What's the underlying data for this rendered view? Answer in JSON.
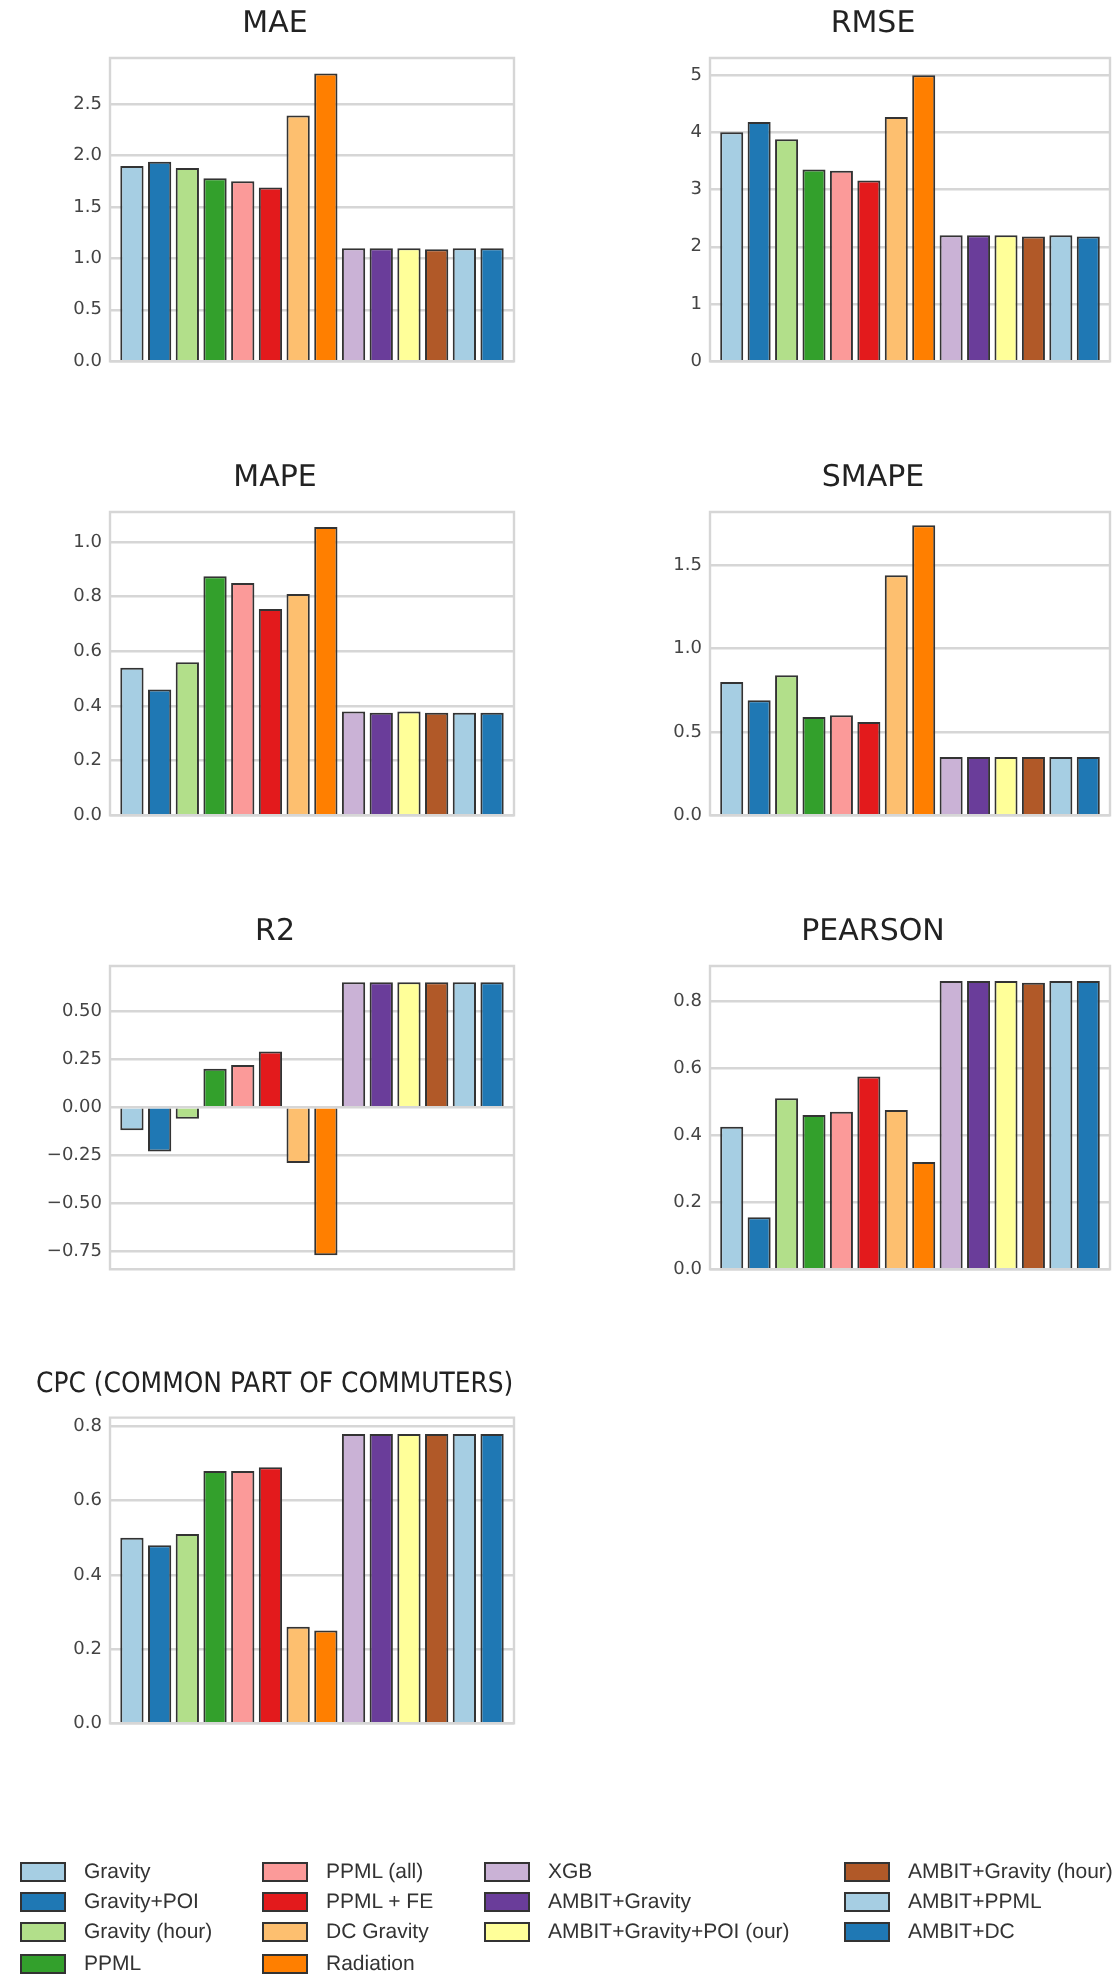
{
  "chart_data": [
    {
      "type": "bar",
      "title": "MAE",
      "categories": [
        null
      ],
      "ylim": [
        0,
        2.95
      ],
      "yticks": [
        {
          "value": 0,
          "label": "0.0"
        },
        {
          "value": 0.5,
          "label": "0.5"
        },
        {
          "value": 1,
          "label": "1.0"
        },
        {
          "value": 1.5,
          "label": "1.5"
        },
        {
          "value": 2,
          "label": "2.0"
        },
        {
          "value": 2.5,
          "label": "2.5"
        }
      ],
      "grid": "y",
      "legend": false,
      "series": [
        {
          "color": "#a6cee3",
          "values": [
            1.9
          ]
        },
        {
          "color": "#1f78b4",
          "values": [
            1.94
          ]
        },
        {
          "color": "#b2df8a",
          "values": [
            1.88
          ]
        },
        {
          "color": "#33a02c",
          "values": [
            1.78
          ]
        },
        {
          "color": "#fb9a99",
          "values": [
            1.75
          ]
        },
        {
          "color": "#e31a1c",
          "values": [
            1.69
          ]
        },
        {
          "color": "#fdbf6f",
          "values": [
            2.39
          ]
        },
        {
          "color": "#ff7f00",
          "values": [
            2.8
          ]
        },
        {
          "color": "#cab2d6",
          "values": [
            1.1
          ]
        },
        {
          "color": "#6a3d9a",
          "values": [
            1.1
          ]
        },
        {
          "color": "#ffff99",
          "values": [
            1.1
          ]
        },
        {
          "color": "#b15928",
          "values": [
            1.09
          ]
        },
        {
          "color": "#a6cee3",
          "values": [
            1.1
          ]
        },
        {
          "color": "#1f78b4",
          "values": [
            1.1
          ]
        }
      ]
    },
    {
      "type": "bar",
      "title": "RMSE",
      "categories": [
        null
      ],
      "ylim": [
        0,
        5.3
      ],
      "yticks": [
        0,
        1,
        2,
        3,
        4,
        5
      ],
      "grid": "y",
      "legend": false,
      "series": [
        {
          "color": "#a6cee3",
          "values": [
            4.0
          ]
        },
        {
          "color": "#1f78b4",
          "values": [
            4.18
          ]
        },
        {
          "color": "#b2df8a",
          "values": [
            3.88
          ]
        },
        {
          "color": "#33a02c",
          "values": [
            3.35
          ]
        },
        {
          "color": "#fb9a99",
          "values": [
            3.33
          ]
        },
        {
          "color": "#e31a1c",
          "values": [
            3.16
          ]
        },
        {
          "color": "#fdbf6f",
          "values": [
            4.27
          ]
        },
        {
          "color": "#ff7f00",
          "values": [
            5.0
          ]
        },
        {
          "color": "#cab2d6",
          "values": [
            2.2
          ]
        },
        {
          "color": "#6a3d9a",
          "values": [
            2.2
          ]
        },
        {
          "color": "#ffff99",
          "values": [
            2.2
          ]
        },
        {
          "color": "#b15928",
          "values": [
            2.18
          ]
        },
        {
          "color": "#a6cee3",
          "values": [
            2.2
          ]
        },
        {
          "color": "#1f78b4",
          "values": [
            2.18
          ]
        }
      ]
    },
    {
      "type": "bar",
      "title": "MAPE",
      "categories": [
        null
      ],
      "ylim": [
        0,
        1.11
      ],
      "yticks": [
        {
          "value": 0,
          "label": "0.0"
        },
        {
          "value": 0.2,
          "label": "0.2"
        },
        {
          "value": 0.4,
          "label": "0.4"
        },
        {
          "value": 0.6,
          "label": "0.6"
        },
        {
          "value": 0.8,
          "label": "0.8"
        },
        {
          "value": 1,
          "label": "1.0"
        }
      ],
      "grid": "y",
      "legend": false,
      "series": [
        {
          "color": "#a6cee3",
          "values": [
            0.54
          ]
        },
        {
          "color": "#1f78b4",
          "values": [
            0.46
          ]
        },
        {
          "color": "#b2df8a",
          "values": [
            0.56
          ]
        },
        {
          "color": "#33a02c",
          "values": [
            0.875
          ]
        },
        {
          "color": "#fb9a99",
          "values": [
            0.85
          ]
        },
        {
          "color": "#e31a1c",
          "values": [
            0.755
          ]
        },
        {
          "color": "#fdbf6f",
          "values": [
            0.81
          ]
        },
        {
          "color": "#ff7f00",
          "values": [
            1.055
          ]
        },
        {
          "color": "#cab2d6",
          "values": [
            0.38
          ]
        },
        {
          "color": "#6a3d9a",
          "values": [
            0.375
          ]
        },
        {
          "color": "#ffff99",
          "values": [
            0.38
          ]
        },
        {
          "color": "#b15928",
          "values": [
            0.375
          ]
        },
        {
          "color": "#a6cee3",
          "values": [
            0.375
          ]
        },
        {
          "color": "#1f78b4",
          "values": [
            0.375
          ]
        }
      ]
    },
    {
      "type": "bar",
      "title": "SMAPE",
      "categories": [
        null
      ],
      "ylim": [
        0,
        1.82
      ],
      "yticks": [
        {
          "value": 0,
          "label": "0.0"
        },
        {
          "value": 0.5,
          "label": "0.5"
        },
        {
          "value": 1,
          "label": "1.0"
        },
        {
          "value": 1.5,
          "label": "1.5"
        }
      ],
      "grid": "y",
      "legend": false,
      "series": [
        {
          "color": "#a6cee3",
          "values": [
            0.8
          ]
        },
        {
          "color": "#1f78b4",
          "values": [
            0.69
          ]
        },
        {
          "color": "#b2df8a",
          "values": [
            0.84
          ]
        },
        {
          "color": "#33a02c",
          "values": [
            0.59
          ]
        },
        {
          "color": "#fb9a99",
          "values": [
            0.6
          ]
        },
        {
          "color": "#e31a1c",
          "values": [
            0.56
          ]
        },
        {
          "color": "#fdbf6f",
          "values": [
            1.44
          ]
        },
        {
          "color": "#ff7f00",
          "values": [
            1.74
          ]
        },
        {
          "color": "#cab2d6",
          "values": [
            0.35
          ]
        },
        {
          "color": "#6a3d9a",
          "values": [
            0.35
          ]
        },
        {
          "color": "#ffff99",
          "values": [
            0.35
          ]
        },
        {
          "color": "#b15928",
          "values": [
            0.35
          ]
        },
        {
          "color": "#a6cee3",
          "values": [
            0.35
          ]
        },
        {
          "color": "#1f78b4",
          "values": [
            0.35
          ]
        }
      ]
    },
    {
      "type": "bar",
      "title": "R2",
      "categories": [
        null
      ],
      "ylim": [
        -0.843,
        0.735
      ],
      "yticks": [
        {
          "value": -0.75,
          "label": "−0.75"
        },
        {
          "value": -0.5,
          "label": "−0.50"
        },
        {
          "value": -0.25,
          "label": "−0.25"
        },
        {
          "value": 0,
          "label": "0.00"
        },
        {
          "value": 0.25,
          "label": "0.25"
        },
        {
          "value": 0.5,
          "label": "0.50"
        }
      ],
      "grid": "y",
      "legend": false,
      "series": [
        {
          "color": "#a6cee3",
          "values": [
            -0.12
          ]
        },
        {
          "color": "#1f78b4",
          "values": [
            -0.23
          ]
        },
        {
          "color": "#b2df8a",
          "values": [
            -0.06
          ]
        },
        {
          "color": "#33a02c",
          "values": [
            0.2
          ]
        },
        {
          "color": "#fb9a99",
          "values": [
            0.22
          ]
        },
        {
          "color": "#e31a1c",
          "values": [
            0.29
          ]
        },
        {
          "color": "#fdbf6f",
          "values": [
            -0.29
          ]
        },
        {
          "color": "#ff7f00",
          "values": [
            -0.77
          ]
        },
        {
          "color": "#cab2d6",
          "values": [
            0.65
          ]
        },
        {
          "color": "#6a3d9a",
          "values": [
            0.65
          ]
        },
        {
          "color": "#ffff99",
          "values": [
            0.65
          ]
        },
        {
          "color": "#b15928",
          "values": [
            0.65
          ]
        },
        {
          "color": "#a6cee3",
          "values": [
            0.65
          ]
        },
        {
          "color": "#1f78b4",
          "values": [
            0.65
          ]
        }
      ]
    },
    {
      "type": "bar",
      "title": "PEARSON",
      "categories": [
        null
      ],
      "ylim": [
        0,
        0.905
      ],
      "yticks": [
        {
          "value": 0,
          "label": "0.0"
        },
        {
          "value": 0.2,
          "label": "0.2"
        },
        {
          "value": 0.4,
          "label": "0.4"
        },
        {
          "value": 0.6,
          "label": "0.6"
        },
        {
          "value": 0.8,
          "label": "0.8"
        }
      ],
      "grid": "y",
      "legend": false,
      "series": [
        {
          "color": "#a6cee3",
          "values": [
            0.425
          ]
        },
        {
          "color": "#1f78b4",
          "values": [
            0.155
          ]
        },
        {
          "color": "#b2df8a",
          "values": [
            0.51
          ]
        },
        {
          "color": "#33a02c",
          "values": [
            0.46
          ]
        },
        {
          "color": "#fb9a99",
          "values": [
            0.47
          ]
        },
        {
          "color": "#e31a1c",
          "values": [
            0.575
          ]
        },
        {
          "color": "#fdbf6f",
          "values": [
            0.475
          ]
        },
        {
          "color": "#ff7f00",
          "values": [
            0.32
          ]
        },
        {
          "color": "#cab2d6",
          "values": [
            0.86
          ]
        },
        {
          "color": "#6a3d9a",
          "values": [
            0.86
          ]
        },
        {
          "color": "#ffff99",
          "values": [
            0.86
          ]
        },
        {
          "color": "#b15928",
          "values": [
            0.855
          ]
        },
        {
          "color": "#a6cee3",
          "values": [
            0.86
          ]
        },
        {
          "color": "#1f78b4",
          "values": [
            0.86
          ]
        }
      ]
    },
    {
      "type": "bar",
      "title": "CPC (COMMON PART OF COMMUTERS)",
      "categories": [
        null
      ],
      "ylim": [
        0,
        0.824
      ],
      "yticks": [
        {
          "value": 0,
          "label": "0.0"
        },
        {
          "value": 0.2,
          "label": "0.2"
        },
        {
          "value": 0.4,
          "label": "0.4"
        },
        {
          "value": 0.6,
          "label": "0.6"
        },
        {
          "value": 0.8,
          "label": "0.8"
        }
      ],
      "grid": "y",
      "legend": "bottom",
      "series": [
        {
          "name": "Gravity",
          "color": "#a6cee3",
          "values": [
            0.5
          ]
        },
        {
          "name": "Gravity+POI",
          "color": "#1f78b4",
          "values": [
            0.48
          ]
        },
        {
          "name": "Gravity (hour)",
          "color": "#b2df8a",
          "values": [
            0.51
          ]
        },
        {
          "name": "PPML",
          "color": "#33a02c",
          "values": [
            0.68
          ]
        },
        {
          "name": "PPML (all)",
          "color": "#fb9a99",
          "values": [
            0.68
          ]
        },
        {
          "name": "PPML + FE",
          "color": "#e31a1c",
          "values": [
            0.69
          ]
        },
        {
          "name": "DC Gravity",
          "color": "#fdbf6f",
          "values": [
            0.26
          ]
        },
        {
          "name": "Radiation",
          "color": "#ff7f00",
          "values": [
            0.25
          ]
        },
        {
          "name": "XGB",
          "color": "#cab2d6",
          "values": [
            0.78
          ]
        },
        {
          "name": "AMBIT+Gravity",
          "color": "#6a3d9a",
          "values": [
            0.78
          ]
        },
        {
          "name": "AMBIT+Gravity+POI (our)",
          "color": "#ffff99",
          "values": [
            0.78
          ]
        },
        {
          "name": "AMBIT+Gravity (hour)",
          "color": "#b15928",
          "values": [
            0.78
          ]
        },
        {
          "name": "AMBIT+PPML",
          "color": "#a6cee3",
          "values": [
            0.78
          ]
        },
        {
          "name": "AMBIT+DC",
          "color": "#1f78b4",
          "values": [
            0.78
          ]
        }
      ]
    }
  ]
}
